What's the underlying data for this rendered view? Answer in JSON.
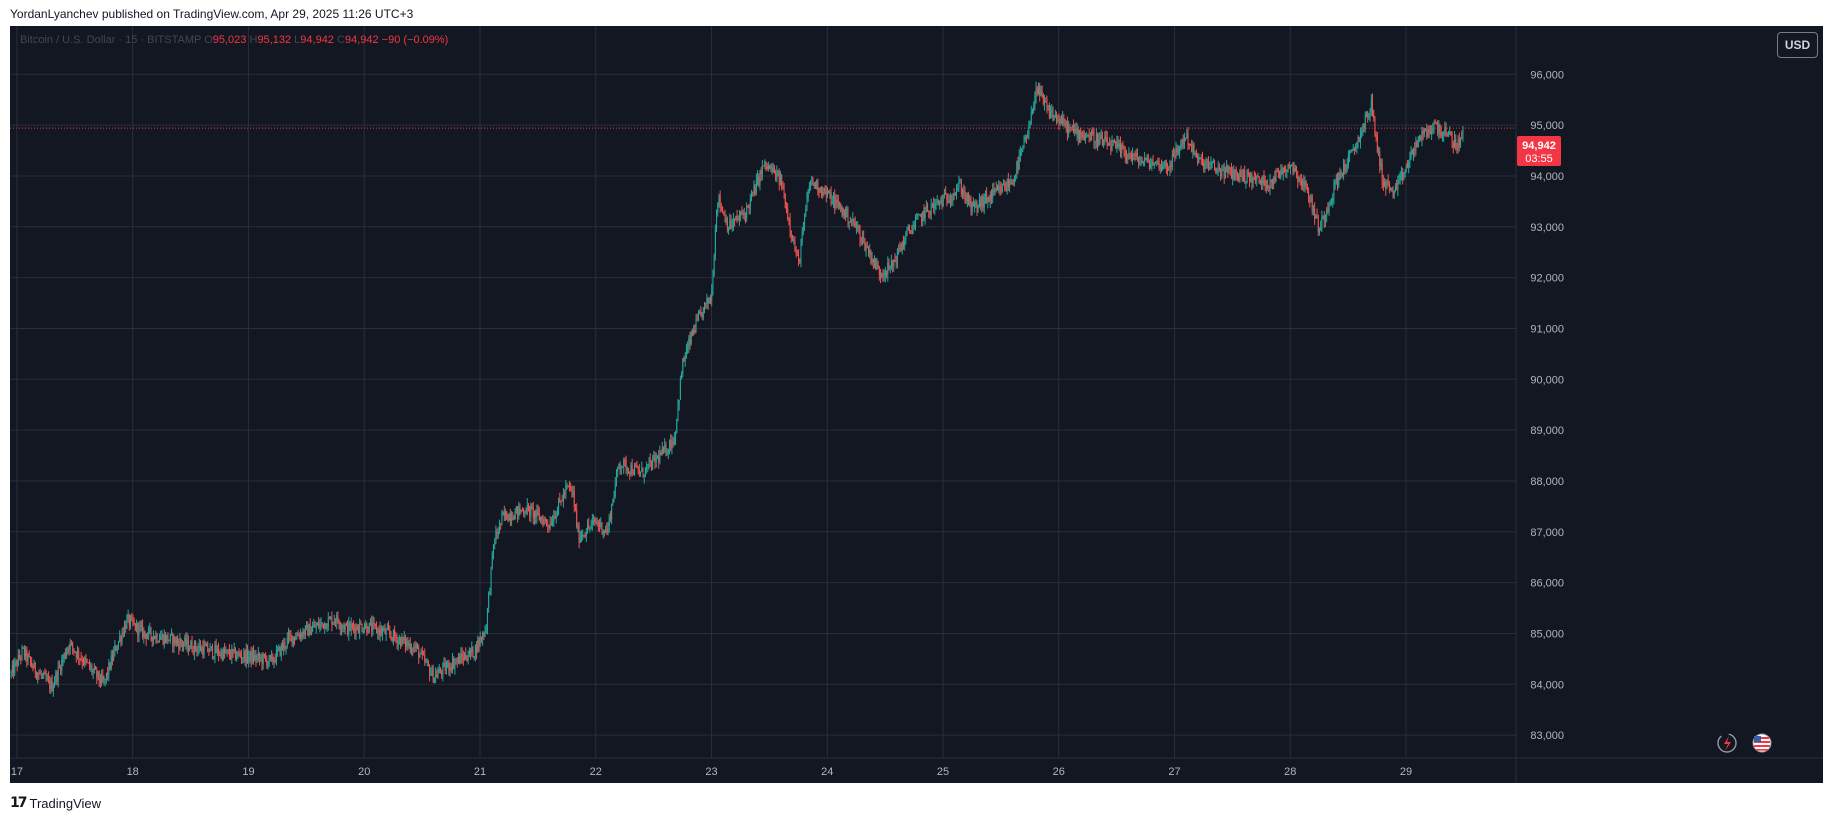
{
  "attribution": "YordanLyanchev published on TradingView.com, Apr 29, 2025 11:26 UTC+3",
  "header": {
    "symbol": "Bitcoin / U.S. Dollar · 15 · BITSTAMP",
    "open_label": "O",
    "open": "95,023",
    "high_label": "H",
    "high": "95,132",
    "low_label": "L",
    "low": "94,942",
    "close_label": "C",
    "close": "94,942",
    "change": "−90 (−0.09%)"
  },
  "currency_button": "USD",
  "last_price": {
    "value": "94,942",
    "countdown": "03:55"
  },
  "footer": {
    "brand": "TradingView",
    "mark": "17"
  },
  "icons": [
    "lightning-icon",
    "us-flag-icon"
  ],
  "colors": {
    "up": "#26a69a",
    "down": "#ef5350",
    "background": "#131722",
    "grid": "#2a2e39",
    "price_line": "#f23645"
  },
  "chart_data": {
    "type": "candlestick",
    "interval": "15",
    "x_ticks": [
      "17",
      "18",
      "19",
      "20",
      "21",
      "22",
      "23",
      "24",
      "25",
      "26",
      "27",
      "28",
      "29"
    ],
    "y_ticks": [
      "83,000",
      "84,000",
      "85,000",
      "86,000",
      "87,000",
      "88,000",
      "89,000",
      "90,000",
      "91,000",
      "92,000",
      "93,000",
      "94,000",
      "95,000",
      "96,000"
    ],
    "ylim": [
      82550,
      96950
    ],
    "xlim": [
      16.94,
      29.95
    ],
    "grid": true,
    "last_price": 94942,
    "close_path": [
      [
        16.95,
        84200
      ],
      [
        17.05,
        84650
      ],
      [
        17.15,
        84300
      ],
      [
        17.3,
        83950
      ],
      [
        17.45,
        84800
      ],
      [
        17.6,
        84400
      ],
      [
        17.75,
        84000
      ],
      [
        17.85,
        84700
      ],
      [
        17.95,
        85250
      ],
      [
        18.1,
        85000
      ],
      [
        18.3,
        84900
      ],
      [
        18.5,
        84750
      ],
      [
        18.8,
        84600
      ],
      [
        19.0,
        84550
      ],
      [
        19.2,
        84450
      ],
      [
        19.35,
        84900
      ],
      [
        19.55,
        85100
      ],
      [
        19.75,
        85300
      ],
      [
        19.85,
        85100
      ],
      [
        20.0,
        85150
      ],
      [
        20.2,
        85000
      ],
      [
        20.45,
        84700
      ],
      [
        20.6,
        84150
      ],
      [
        20.75,
        84400
      ],
      [
        20.95,
        84650
      ],
      [
        21.05,
        85100
      ],
      [
        21.12,
        86800
      ],
      [
        21.2,
        87300
      ],
      [
        21.4,
        87450
      ],
      [
        21.6,
        87150
      ],
      [
        21.75,
        87850
      ],
      [
        21.8,
        87800
      ],
      [
        21.85,
        86900
      ],
      [
        22.0,
        87200
      ],
      [
        22.1,
        87000
      ],
      [
        22.2,
        88350
      ],
      [
        22.4,
        88150
      ],
      [
        22.6,
        88600
      ],
      [
        22.68,
        88850
      ],
      [
        22.75,
        90300
      ],
      [
        22.85,
        91000
      ],
      [
        22.95,
        91450
      ],
      [
        23.0,
        91650
      ],
      [
        23.05,
        93600
      ],
      [
        23.15,
        93000
      ],
      [
        23.3,
        93300
      ],
      [
        23.45,
        94200
      ],
      [
        23.5,
        94150
      ],
      [
        23.6,
        93900
      ],
      [
        23.7,
        92800
      ],
      [
        23.75,
        92250
      ],
      [
        23.85,
        93900
      ],
      [
        23.95,
        93750
      ],
      [
        24.1,
        93400
      ],
      [
        24.25,
        93000
      ],
      [
        24.45,
        92100
      ],
      [
        24.55,
        92200
      ],
      [
        24.7,
        92900
      ],
      [
        24.85,
        93300
      ],
      [
        25.05,
        93600
      ],
      [
        25.15,
        93800
      ],
      [
        25.25,
        93350
      ],
      [
        25.45,
        93650
      ],
      [
        25.6,
        93900
      ],
      [
        25.75,
        94950
      ],
      [
        25.8,
        95750
      ],
      [
        25.9,
        95300
      ],
      [
        26.1,
        94900
      ],
      [
        26.25,
        94800
      ],
      [
        26.5,
        94550
      ],
      [
        26.7,
        94300
      ],
      [
        26.95,
        94200
      ],
      [
        27.1,
        94800
      ],
      [
        27.2,
        94300
      ],
      [
        27.4,
        94100
      ],
      [
        27.6,
        94000
      ],
      [
        27.8,
        93850
      ],
      [
        28.0,
        94250
      ],
      [
        28.15,
        93700
      ],
      [
        28.25,
        92950
      ],
      [
        28.4,
        93900
      ],
      [
        28.55,
        94500
      ],
      [
        28.7,
        95400
      ],
      [
        28.75,
        94600
      ],
      [
        28.8,
        93900
      ],
      [
        28.9,
        93650
      ],
      [
        29.0,
        94150
      ],
      [
        29.1,
        94700
      ],
      [
        29.25,
        95000
      ],
      [
        29.35,
        94800
      ],
      [
        29.45,
        94600
      ],
      [
        29.5,
        94942
      ]
    ]
  }
}
